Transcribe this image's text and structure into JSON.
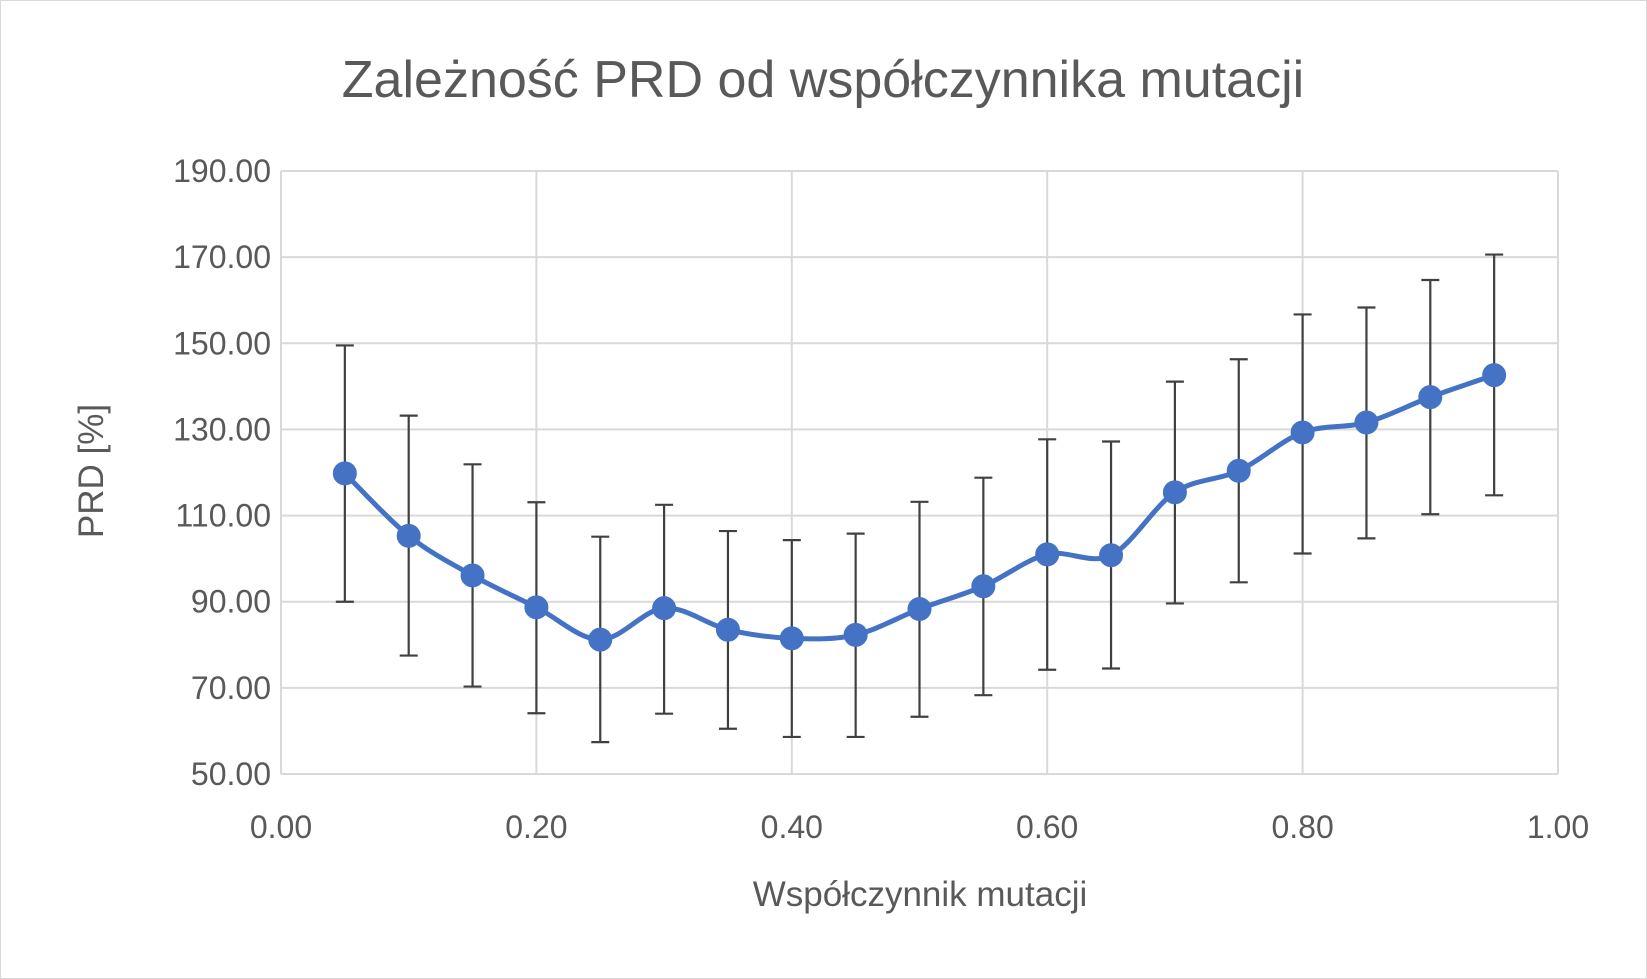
{
  "chart_data": {
    "type": "scatter",
    "title": "Zależność PRD od współczynnika mutacji",
    "xlabel": "Współczynnik mutacji",
    "ylabel": "PRD [%]",
    "xlim": [
      0,
      1
    ],
    "ylim": [
      50,
      190
    ],
    "x_ticks": [
      "0.00",
      "0.20",
      "0.40",
      "0.60",
      "0.80",
      "1.00"
    ],
    "y_ticks": [
      "50.00",
      "70.00",
      "90.00",
      "110.00",
      "130.00",
      "150.00",
      "170.00",
      "190.00"
    ],
    "x_tick_values": [
      0,
      0.2,
      0.4,
      0.6,
      0.8,
      1.0
    ],
    "y_tick_values": [
      50,
      70,
      90,
      110,
      130,
      150,
      170,
      190
    ],
    "grid": true,
    "smooth": true,
    "color": "#4472c4",
    "error_bar_color": "#404040",
    "series": [
      {
        "name": "PRD",
        "x": [
          0.05,
          0.1,
          0.15,
          0.2,
          0.25,
          0.3,
          0.35,
          0.4,
          0.45,
          0.5,
          0.55,
          0.6,
          0.65,
          0.7,
          0.75,
          0.8,
          0.85,
          0.9,
          0.95
        ],
        "values": [
          119.8,
          105.3,
          96.1,
          88.7,
          81.2,
          88.5,
          83.5,
          81.5,
          82.3,
          88.3,
          93.6,
          101.0,
          100.8,
          115.4,
          120.4,
          129.3,
          131.6,
          137.5,
          142.6
        ],
        "error_low": [
          90.0,
          77.5,
          70.3,
          64.1,
          57.4,
          64.0,
          60.5,
          58.6,
          58.6,
          63.3,
          68.3,
          74.2,
          74.5,
          89.6,
          94.5,
          101.2,
          104.7,
          110.3,
          114.7
        ],
        "error_high": [
          149.5,
          133.2,
          121.9,
          113.1,
          105.1,
          112.5,
          106.4,
          104.3,
          105.8,
          113.2,
          118.8,
          127.7,
          127.2,
          141.1,
          146.3,
          156.7,
          158.3,
          164.7,
          170.6
        ]
      }
    ]
  }
}
